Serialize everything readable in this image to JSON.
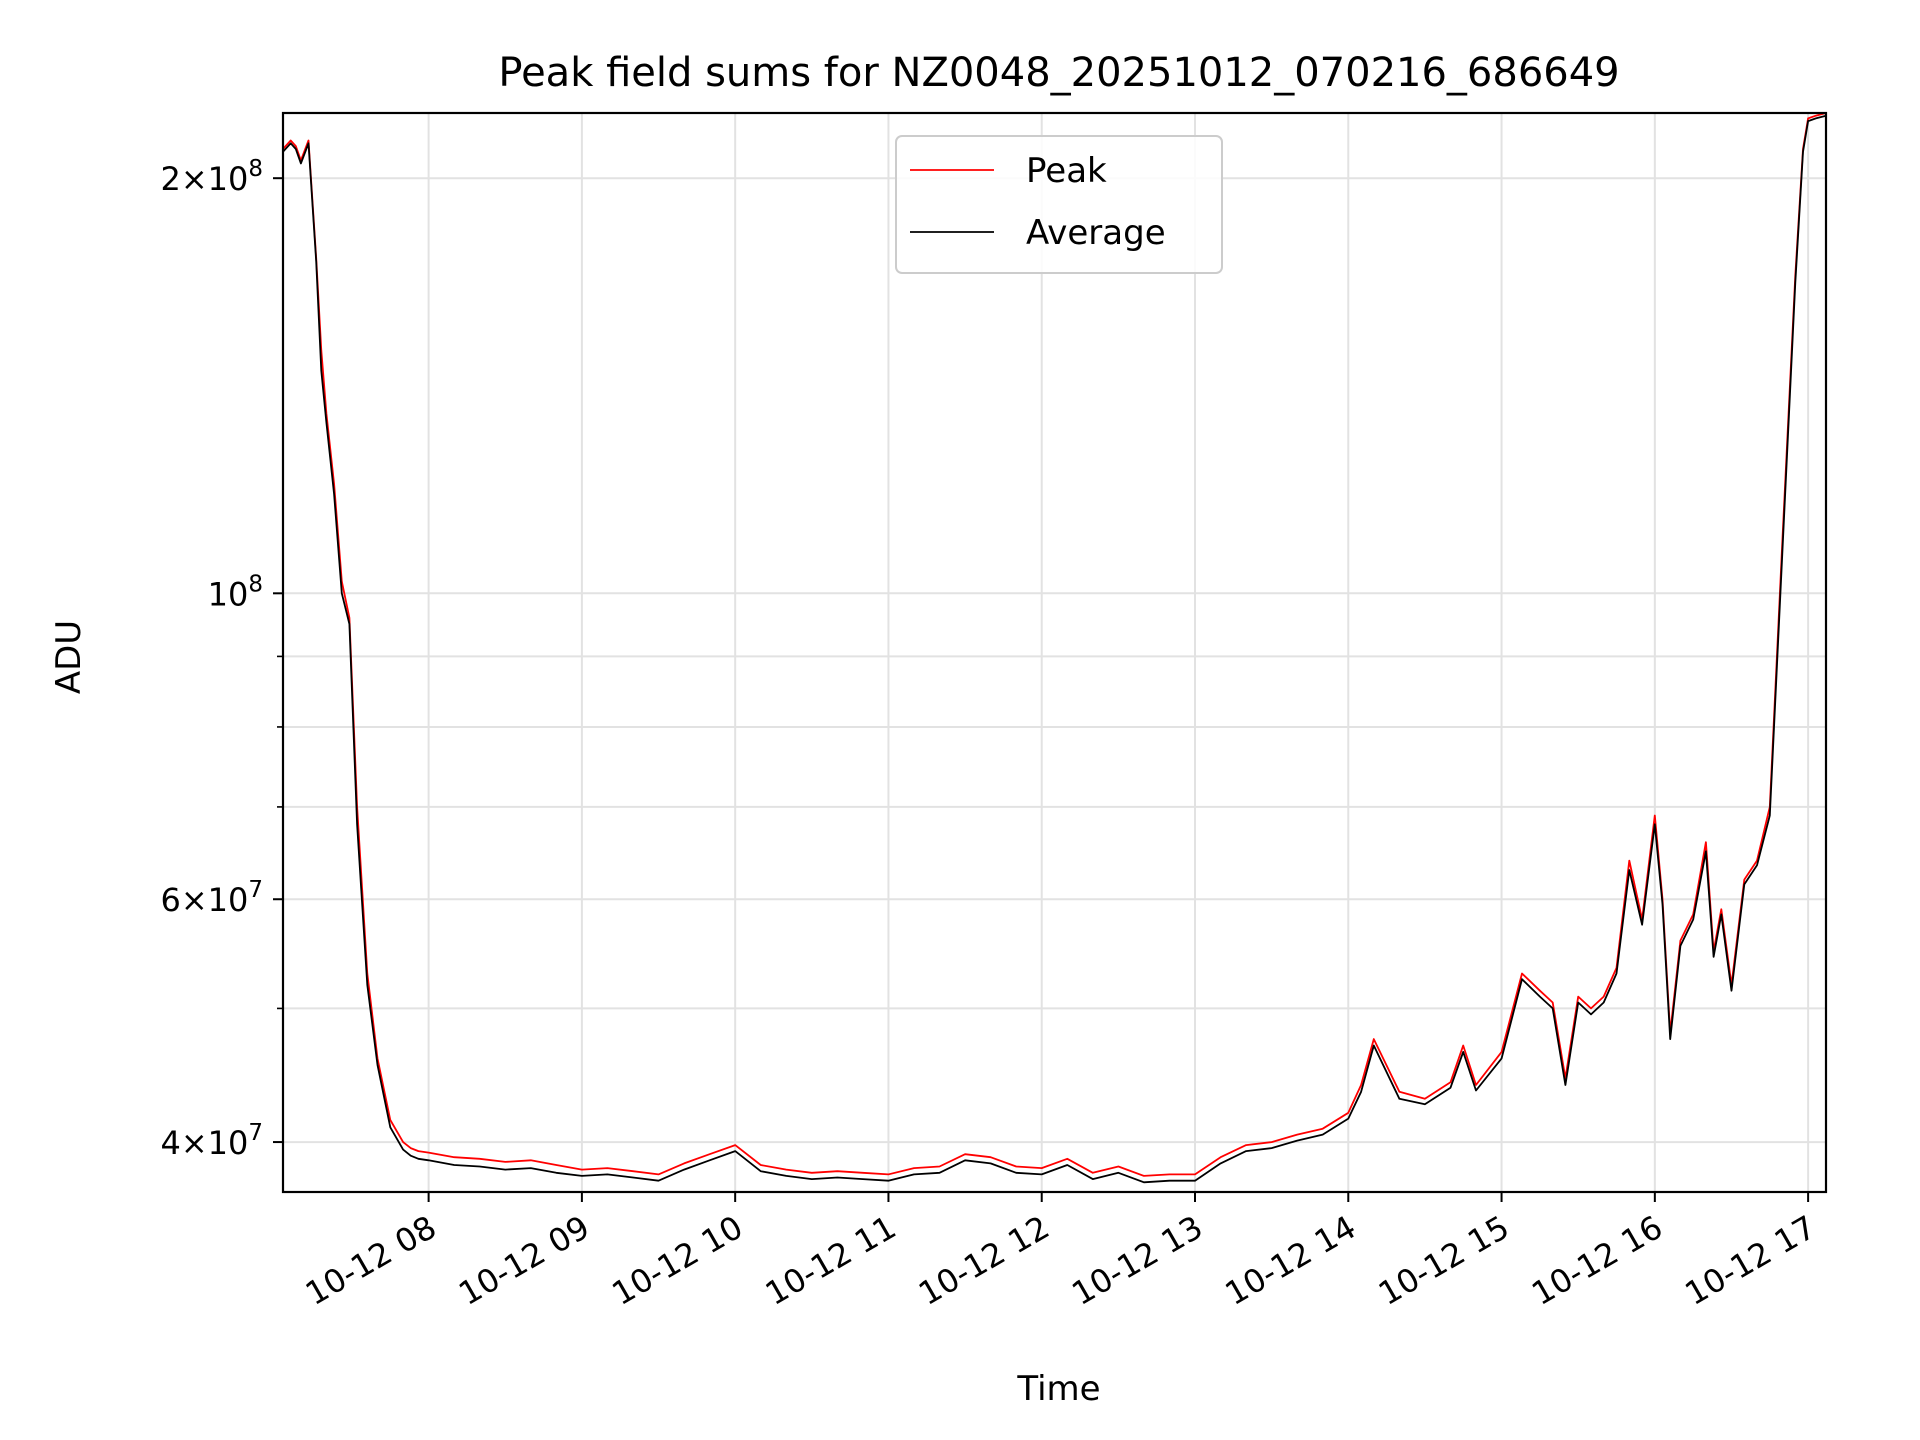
{
  "chart_data": {
    "type": "line",
    "title": "Peak field sums for NZ0048_20251012_070216_686649",
    "xlabel": "Time",
    "ylabel": "ADU",
    "y_scale": "log",
    "ylim": [
      36800000,
      223000000
    ],
    "xlim": [
      "10-12 07:03",
      "10-12 17:07"
    ],
    "grid": true,
    "legend_position": "top-center",
    "x_ticks": [
      "10-12 08",
      "10-12 09",
      "10-12 10",
      "10-12 11",
      "10-12 12",
      "10-12 13",
      "10-12 14",
      "10-12 15",
      "10-12 16",
      "10-12 17"
    ],
    "y_ticks_major": [
      {
        "value": 40000000,
        "label_mantissa": "4",
        "label_exp": "7"
      },
      {
        "value": 60000000,
        "label_mantissa": "6",
        "label_exp": "7"
      },
      {
        "value": 100000000,
        "label_mantissa": "",
        "label_exp": "8"
      },
      {
        "value": 200000000,
        "label_mantissa": "2",
        "label_exp": "8"
      }
    ],
    "y_ticks_minor": [
      50000000,
      70000000,
      80000000,
      90000000
    ],
    "x_time_format": "10-12 HH:MM",
    "series": [
      {
        "name": "Peak",
        "color": "#ff0000",
        "x": [
          "10-12 07:03",
          "10-12 07:06",
          "10-12 07:08",
          "10-12 07:10",
          "10-12 07:13",
          "10-12 07:16",
          "10-12 07:18",
          "10-12 07:20",
          "10-12 07:23",
          "10-12 07:26",
          "10-12 07:29",
          "10-12 07:32",
          "10-12 07:36",
          "10-12 07:40",
          "10-12 07:45",
          "10-12 07:50",
          "10-12 07:53",
          "10-12 07:56",
          "10-12 08:00",
          "10-12 08:10",
          "10-12 08:20",
          "10-12 08:30",
          "10-12 08:40",
          "10-12 08:50",
          "10-12 09:00",
          "10-12 09:10",
          "10-12 09:20",
          "10-12 09:30",
          "10-12 09:40",
          "10-12 09:50",
          "10-12 10:00",
          "10-12 10:10",
          "10-12 10:20",
          "10-12 10:30",
          "10-12 10:40",
          "10-12 10:50",
          "10-12 11:00",
          "10-12 11:10",
          "10-12 11:20",
          "10-12 11:30",
          "10-12 11:40",
          "10-12 11:50",
          "10-12 12:00",
          "10-12 12:10",
          "10-12 12:20",
          "10-12 12:30",
          "10-12 12:40",
          "10-12 12:50",
          "10-12 13:00",
          "10-12 13:10",
          "10-12 13:20",
          "10-12 13:30",
          "10-12 13:40",
          "10-12 13:50",
          "10-12 14:00",
          "10-12 14:05",
          "10-12 14:10",
          "10-12 14:20",
          "10-12 14:30",
          "10-12 14:40",
          "10-12 14:45",
          "10-12 14:50",
          "10-12 15:00",
          "10-12 15:08",
          "10-12 15:15",
          "10-12 15:20",
          "10-12 15:25",
          "10-12 15:30",
          "10-12 15:35",
          "10-12 15:40",
          "10-12 15:45",
          "10-12 15:50",
          "10-12 15:55",
          "10-12 16:00",
          "10-12 16:03",
          "10-12 16:06",
          "10-12 16:10",
          "10-12 16:15",
          "10-12 16:20",
          "10-12 16:23",
          "10-12 16:26",
          "10-12 16:30",
          "10-12 16:35",
          "10-12 16:40",
          "10-12 16:45",
          "10-12 16:50",
          "10-12 16:55",
          "10-12 16:58",
          "10-12 17:00",
          "10-12 17:03",
          "10-12 17:07"
        ],
        "values": [
          210000000,
          213000000,
          211000000,
          206000000,
          213000000,
          175000000,
          150000000,
          135000000,
          120000000,
          102000000,
          96000000,
          70000000,
          53000000,
          46000000,
          41500000,
          40000000,
          39600000,
          39400000,
          39300000,
          39000000,
          38900000,
          38700000,
          38800000,
          38500000,
          38200000,
          38300000,
          38100000,
          37900000,
          38600000,
          39200000,
          39800000,
          38500000,
          38200000,
          38000000,
          38100000,
          38000000,
          37900000,
          38300000,
          38400000,
          39200000,
          39000000,
          38400000,
          38300000,
          38900000,
          38000000,
          38400000,
          37800000,
          37900000,
          37900000,
          39000000,
          39800000,
          40000000,
          40500000,
          40900000,
          42000000,
          44000000,
          47500000,
          43500000,
          43000000,
          44200000,
          47000000,
          44000000,
          46500000,
          53000000,
          51500000,
          50500000,
          44500000,
          51000000,
          50000000,
          51000000,
          53500000,
          64000000,
          58000000,
          69000000,
          60000000,
          48000000,
          56000000,
          58500000,
          66000000,
          55000000,
          59000000,
          52000000,
          62000000,
          64000000,
          70000000,
          110000000,
          170000000,
          210000000,
          221000000,
          222000000,
          223000000
        ]
      },
      {
        "name": "Average",
        "color": "#000000",
        "x": [
          "10-12 07:03",
          "10-12 07:06",
          "10-12 07:08",
          "10-12 07:10",
          "10-12 07:13",
          "10-12 07:16",
          "10-12 07:18",
          "10-12 07:20",
          "10-12 07:23",
          "10-12 07:26",
          "10-12 07:29",
          "10-12 07:32",
          "10-12 07:36",
          "10-12 07:40",
          "10-12 07:45",
          "10-12 07:50",
          "10-12 07:53",
          "10-12 07:56",
          "10-12 08:00",
          "10-12 08:10",
          "10-12 08:20",
          "10-12 08:30",
          "10-12 08:40",
          "10-12 08:50",
          "10-12 09:00",
          "10-12 09:10",
          "10-12 09:20",
          "10-12 09:30",
          "10-12 09:40",
          "10-12 09:50",
          "10-12 10:00",
          "10-12 10:10",
          "10-12 10:20",
          "10-12 10:30",
          "10-12 10:40",
          "10-12 10:50",
          "10-12 11:00",
          "10-12 11:10",
          "10-12 11:20",
          "10-12 11:30",
          "10-12 11:40",
          "10-12 11:50",
          "10-12 12:00",
          "10-12 12:10",
          "10-12 12:20",
          "10-12 12:30",
          "10-12 12:40",
          "10-12 12:50",
          "10-12 13:00",
          "10-12 13:10",
          "10-12 13:20",
          "10-12 13:30",
          "10-12 13:40",
          "10-12 13:50",
          "10-12 14:00",
          "10-12 14:05",
          "10-12 14:10",
          "10-12 14:20",
          "10-12 14:30",
          "10-12 14:40",
          "10-12 14:45",
          "10-12 14:50",
          "10-12 15:00",
          "10-12 15:08",
          "10-12 15:15",
          "10-12 15:20",
          "10-12 15:25",
          "10-12 15:30",
          "10-12 15:35",
          "10-12 15:40",
          "10-12 15:45",
          "10-12 15:50",
          "10-12 15:55",
          "10-12 16:00",
          "10-12 16:03",
          "10-12 16:06",
          "10-12 16:10",
          "10-12 16:15",
          "10-12 16:20",
          "10-12 16:23",
          "10-12 16:26",
          "10-12 16:30",
          "10-12 16:35",
          "10-12 16:40",
          "10-12 16:45",
          "10-12 16:50",
          "10-12 16:55",
          "10-12 16:58",
          "10-12 17:00",
          "10-12 17:03",
          "10-12 17:07"
        ],
        "values": [
          209000000,
          212000000,
          210000000,
          205000000,
          212000000,
          174000000,
          145000000,
          133000000,
          118000000,
          100000000,
          95000000,
          68000000,
          52000000,
          45500000,
          41000000,
          39500000,
          39100000,
          38900000,
          38800000,
          38500000,
          38400000,
          38200000,
          38300000,
          38000000,
          37800000,
          37900000,
          37700000,
          37500000,
          38200000,
          38800000,
          39400000,
          38100000,
          37800000,
          37600000,
          37700000,
          37600000,
          37500000,
          37900000,
          38000000,
          38800000,
          38600000,
          38000000,
          37900000,
          38500000,
          37600000,
          38000000,
          37400000,
          37500000,
          37500000,
          38600000,
          39400000,
          39600000,
          40100000,
          40500000,
          41600000,
          43500000,
          47000000,
          43000000,
          42600000,
          43800000,
          46500000,
          43600000,
          46000000,
          52500000,
          51000000,
          50000000,
          44000000,
          50500000,
          49500000,
          50500000,
          53000000,
          63000000,
          57500000,
          68000000,
          59500000,
          47500000,
          55500000,
          58000000,
          65000000,
          54500000,
          58500000,
          51500000,
          61500000,
          63500000,
          69000000,
          108000000,
          168000000,
          209000000,
          220000000,
          221000000,
          222000000
        ]
      }
    ]
  }
}
